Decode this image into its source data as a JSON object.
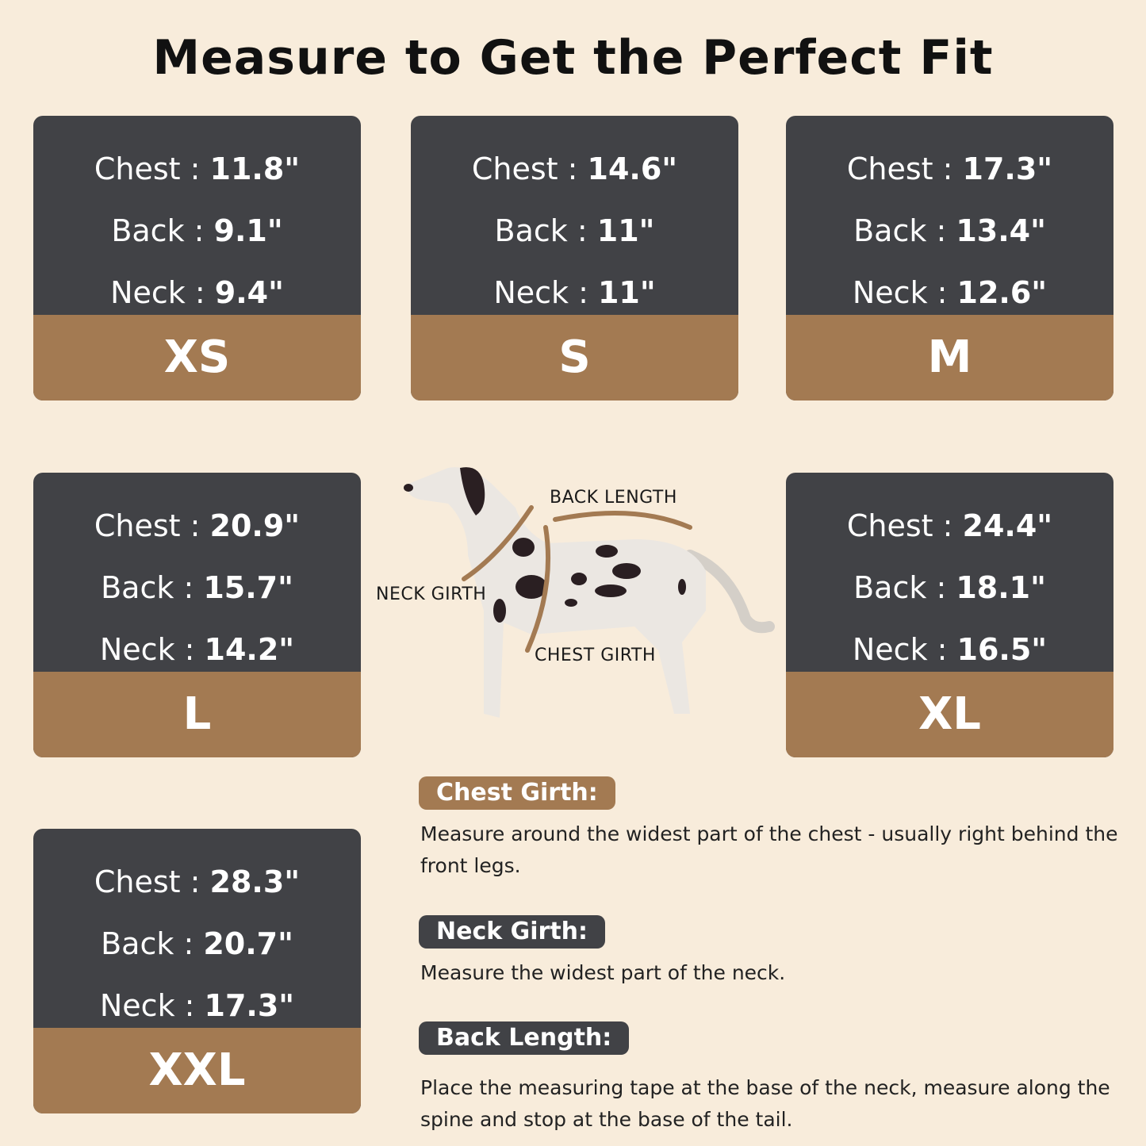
{
  "title": "Measure to Get the Perfect Fit",
  "sizes": [
    {
      "size": "XS",
      "chest": "11.8\"",
      "back": "9.1\"",
      "neck": "9.4\""
    },
    {
      "size": "S",
      "chest": "14.6\"",
      "back": "11\"",
      "neck": "11\""
    },
    {
      "size": "M",
      "chest": "17.3\"",
      "back": "13.4\"",
      "neck": "12.6\""
    },
    {
      "size": "L",
      "chest": "20.9\"",
      "back": "15.7\"",
      "neck": "14.2\""
    },
    {
      "size": "XL",
      "chest": "24.4\"",
      "back": "18.1\"",
      "neck": "16.5\""
    },
    {
      "size": "XXL",
      "chest": "28.3\"",
      "back": "20.7\"",
      "neck": "17.3\""
    }
  ],
  "labels": {
    "chest": "Chest : ",
    "back": "Back : ",
    "neck": "Neck : "
  },
  "diagram": {
    "back_length": "BACK LENGTH",
    "neck_girth": "NECK GIRTH",
    "chest_girth": "CHEST GIRTH"
  },
  "guide": [
    {
      "heading": "Chest Girth:",
      "text": "Measure around the widest part of the chest - usually right behind the front legs."
    },
    {
      "heading": "Neck Girth:",
      "text": "Measure the widest part of the neck."
    },
    {
      "heading": "Back Length:",
      "text": "Place the measuring tape at the base of the neck, measure along the spine and stop at the base of the tail."
    }
  ],
  "colors": {
    "background": "#f8ecdb",
    "card_dark": "#414246",
    "accent_brown": "#a37a52"
  }
}
